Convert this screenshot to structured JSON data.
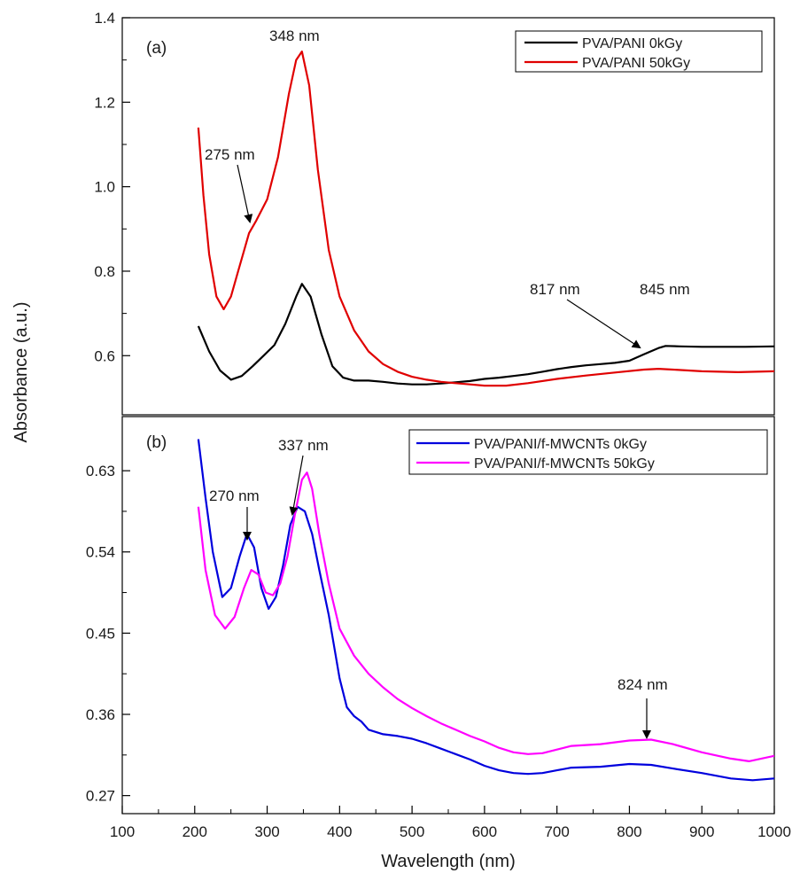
{
  "chart_data": [
    {
      "type": "line",
      "panel_label": "(a)",
      "xlabel": "Wavelength (nm)",
      "ylabel": "Absorbance (a.u.)",
      "xlim": [
        100,
        1000
      ],
      "ylim": [
        0.46,
        1.4
      ],
      "x_ticks": [
        100,
        200,
        300,
        400,
        500,
        600,
        700,
        800,
        900,
        1000
      ],
      "y_ticks": [
        0.6,
        0.8,
        1.0,
        1.2,
        1.4
      ],
      "y_tick_labels": [
        "0.6",
        "0.8",
        "1.0",
        "1.2",
        "1.4"
      ],
      "legend_position": "top-right",
      "series": [
        {
          "name": "PVA/PANI 0kGy",
          "color": "#000000",
          "x": [
            205,
            220,
            235,
            250,
            265,
            280,
            295,
            310,
            325,
            340,
            348,
            360,
            375,
            390,
            405,
            420,
            440,
            460,
            480,
            500,
            520,
            540,
            560,
            580,
            600,
            620,
            640,
            660,
            680,
            700,
            720,
            740,
            760,
            780,
            800,
            820,
            840,
            850,
            870,
            900,
            930,
            960,
            1000
          ],
          "y": [
            0.67,
            0.61,
            0.565,
            0.543,
            0.552,
            0.575,
            0.6,
            0.625,
            0.675,
            0.74,
            0.77,
            0.74,
            0.65,
            0.575,
            0.548,
            0.541,
            0.541,
            0.538,
            0.534,
            0.532,
            0.532,
            0.534,
            0.537,
            0.54,
            0.545,
            0.548,
            0.552,
            0.556,
            0.562,
            0.568,
            0.573,
            0.577,
            0.58,
            0.583,
            0.588,
            0.603,
            0.618,
            0.623,
            0.622,
            0.621,
            0.621,
            0.621,
            0.622
          ]
        },
        {
          "name": "PVA/PANI 50kGy",
          "color": "#e00000",
          "x": [
            205,
            212,
            220,
            230,
            240,
            250,
            260,
            270,
            275,
            285,
            300,
            315,
            330,
            340,
            348,
            358,
            370,
            385,
            400,
            420,
            440,
            460,
            480,
            500,
            520,
            540,
            560,
            580,
            600,
            630,
            660,
            700,
            740,
            780,
            820,
            840,
            860,
            900,
            950,
            1000
          ],
          "y": [
            1.14,
            0.98,
            0.84,
            0.74,
            0.71,
            0.74,
            0.8,
            0.86,
            0.89,
            0.92,
            0.97,
            1.07,
            1.22,
            1.3,
            1.32,
            1.24,
            1.04,
            0.85,
            0.74,
            0.66,
            0.61,
            0.58,
            0.562,
            0.55,
            0.543,
            0.538,
            0.535,
            0.532,
            0.529,
            0.529,
            0.535,
            0.545,
            0.553,
            0.56,
            0.567,
            0.569,
            0.567,
            0.563,
            0.561,
            0.563
          ]
        }
      ],
      "annotations": [
        "348 nm",
        "275 nm",
        "817 nm",
        "845 nm"
      ]
    },
    {
      "type": "line",
      "panel_label": "(b)",
      "xlabel": "Wavelength (nm)",
      "ylabel": "Absorbance (a.u.)",
      "xlim": [
        100,
        1000
      ],
      "ylim": [
        0.25,
        0.69
      ],
      "x_ticks": [
        100,
        200,
        300,
        400,
        500,
        600,
        700,
        800,
        900,
        1000
      ],
      "y_ticks": [
        0.27,
        0.36,
        0.45,
        0.54,
        0.63
      ],
      "y_tick_labels": [
        "0.27",
        "0.36",
        "0.45",
        "0.54",
        "0.63"
      ],
      "legend_position": "top-right",
      "series": [
        {
          "name": "PVA/PANI/f-MWCNTs 0kGy",
          "color": "#0000dd",
          "x": [
            205,
            215,
            225,
            238,
            250,
            262,
            272,
            282,
            292,
            302,
            312,
            322,
            332,
            342,
            352,
            362,
            372,
            385,
            400,
            410,
            420,
            430,
            440,
            460,
            480,
            500,
            520,
            540,
            560,
            580,
            600,
            620,
            640,
            660,
            680,
            700,
            720,
            760,
            800,
            830,
            860,
            900,
            940,
            970,
            1000
          ],
          "y": [
            0.665,
            0.6,
            0.54,
            0.49,
            0.5,
            0.535,
            0.56,
            0.545,
            0.5,
            0.477,
            0.49,
            0.525,
            0.57,
            0.59,
            0.585,
            0.56,
            0.52,
            0.47,
            0.4,
            0.368,
            0.358,
            0.352,
            0.343,
            0.338,
            0.336,
            0.333,
            0.328,
            0.322,
            0.316,
            0.31,
            0.303,
            0.298,
            0.295,
            0.294,
            0.295,
            0.298,
            0.301,
            0.302,
            0.305,
            0.304,
            0.3,
            0.295,
            0.289,
            0.287,
            0.289
          ]
        },
        {
          "name": "PVA/PANI/f-MWCNTs 50kGy",
          "color": "#ff00ff",
          "x": [
            205,
            215,
            228,
            242,
            255,
            268,
            278,
            288,
            298,
            308,
            318,
            328,
            338,
            348,
            355,
            362,
            372,
            385,
            400,
            420,
            440,
            460,
            480,
            500,
            520,
            540,
            560,
            580,
            600,
            620,
            640,
            660,
            680,
            700,
            720,
            760,
            800,
            830,
            860,
            900,
            940,
            965,
            1000
          ],
          "y": [
            0.59,
            0.52,
            0.47,
            0.455,
            0.468,
            0.5,
            0.52,
            0.515,
            0.495,
            0.492,
            0.505,
            0.535,
            0.58,
            0.62,
            0.628,
            0.61,
            0.56,
            0.505,
            0.455,
            0.425,
            0.405,
            0.39,
            0.377,
            0.367,
            0.358,
            0.35,
            0.343,
            0.336,
            0.33,
            0.323,
            0.318,
            0.316,
            0.317,
            0.321,
            0.325,
            0.327,
            0.331,
            0.332,
            0.327,
            0.318,
            0.311,
            0.308,
            0.314
          ]
        }
      ],
      "annotations": [
        "337 nm",
        "270 nm",
        "824 nm"
      ]
    }
  ]
}
